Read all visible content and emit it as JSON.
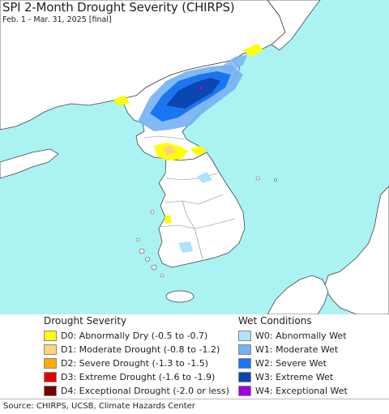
{
  "title": "SPI 2-Month Drought Severity (CHIRPS)",
  "subtitle": "Feb. 1 - Mar. 31, 2025 [final]",
  "colors": {
    "ocean": "#abf3f3",
    "land": "#ffffff",
    "border": "#444444"
  },
  "legend": {
    "drought": {
      "heading": "Drought Severity",
      "items": [
        {
          "label": "D0: Abnormally Dry (-0.5 to -0.7)",
          "color": "#ffff00"
        },
        {
          "label": "D1: Moderate Drought (-0.8 to -1.2)",
          "color": "#fcd37f"
        },
        {
          "label": "D2: Severe Drought (-1.3 to -1.5)",
          "color": "#ffaa00"
        },
        {
          "label": "D3: Extreme Drought (-1.6 to -1.9)",
          "color": "#e60000"
        },
        {
          "label": "D4: Exceptional Drought (-2.0 or less)",
          "color": "#730000"
        }
      ]
    },
    "wet": {
      "heading": "Wet Conditions",
      "items": [
        {
          "label": "W0: Abnormally Wet",
          "color": "#aee4fb"
        },
        {
          "label": "W1: Moderate Wet",
          "color": "#74b0f4"
        },
        {
          "label": "W2: Severe Wet",
          "color": "#1a75f0"
        },
        {
          "label": "W3: Extreme Wet",
          "color": "#0a47b0"
        },
        {
          "label": "W4: Exceptional Wet",
          "color": "#a000e0"
        }
      ]
    }
  },
  "source": "Source: CHIRPS, UCSB, Climate Hazards Center"
}
